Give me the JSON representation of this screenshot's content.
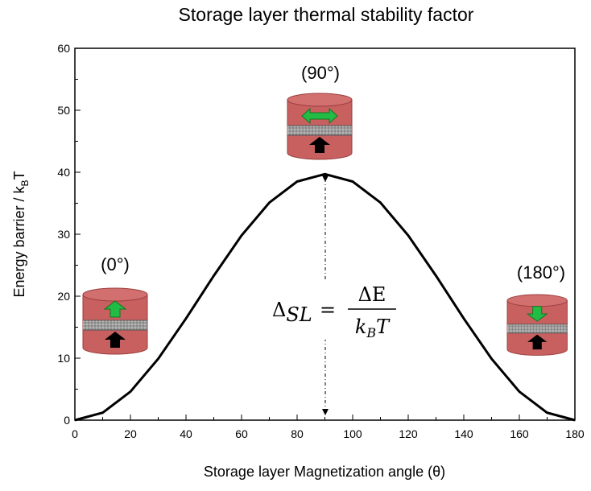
{
  "chart_data": {
    "type": "line",
    "title": "Storage layer thermal stability factor",
    "xlabel": "Storage layer Magnetization angle (θ)",
    "ylabel": [
      "Energy barrier / k",
      "B",
      "T"
    ],
    "x": [
      0,
      10,
      20,
      30,
      40,
      50,
      60,
      70,
      80,
      90,
      100,
      110,
      120,
      130,
      140,
      150,
      160,
      170,
      180
    ],
    "series": [
      {
        "name": "Energy barrier",
        "color": "#000000",
        "values": [
          0,
          1.2,
          4.6,
          9.9,
          16.4,
          23.3,
          29.8,
          35.1,
          38.5,
          39.7,
          38.5,
          35.1,
          29.8,
          23.3,
          16.4,
          9.9,
          4.6,
          1.2,
          0
        ]
      }
    ],
    "xlim": [
      0,
      180
    ],
    "xticks": [
      0,
      20,
      40,
      60,
      80,
      100,
      120,
      140,
      160,
      180
    ],
    "ylim": [
      0,
      60
    ],
    "yticks": [
      0,
      10,
      20,
      30,
      40,
      50,
      60
    ],
    "annotations": [
      "(0°)",
      "(90°)",
      "(180°)"
    ],
    "formula": {
      "lhs": "Δ",
      "lhs_sub": "SL",
      "eq": "=",
      "num": "ΔE",
      "den_k": "k",
      "den_sub": "B",
      "den_t": "T"
    }
  }
}
